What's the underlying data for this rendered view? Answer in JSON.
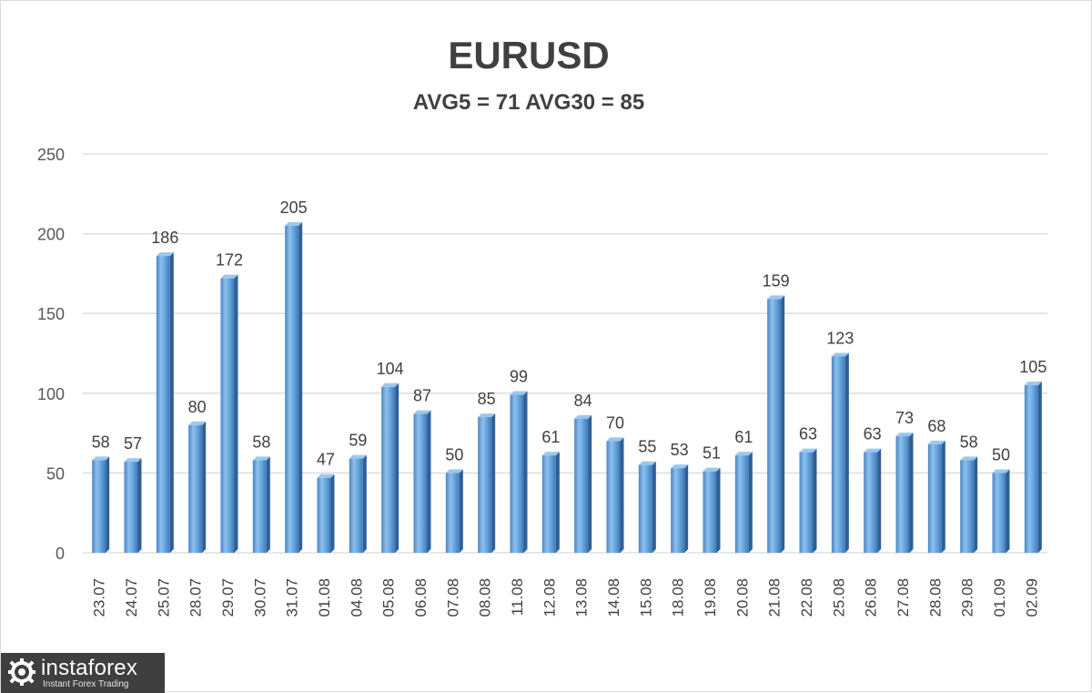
{
  "chart_data": {
    "type": "bar",
    "title": "EURUSD",
    "subtitle": "AVG5 = 71 AVG30 = 85",
    "categories": [
      "23.07",
      "24.07",
      "25.07",
      "28.07",
      "29.07",
      "30.07",
      "31.07",
      "01.08",
      "04.08",
      "05.08",
      "06.08",
      "07.08",
      "08.08",
      "11.08",
      "12.08",
      "13.08",
      "14.08",
      "15.08",
      "18.08",
      "19.08",
      "20.08",
      "21.08",
      "22.08",
      "25.08",
      "26.08",
      "27.08",
      "28.08",
      "29.08",
      "01.09",
      "02.09"
    ],
    "values": [
      58,
      57,
      186,
      80,
      172,
      58,
      205,
      47,
      59,
      104,
      87,
      50,
      85,
      99,
      61,
      84,
      70,
      55,
      53,
      51,
      61,
      159,
      63,
      123,
      63,
      73,
      68,
      58,
      50,
      105
    ],
    "ylim": [
      0,
      250
    ],
    "yticks": [
      0,
      50,
      100,
      150,
      200,
      250
    ],
    "grid": true,
    "data_labels": true,
    "bar_color": "#5b9bd5"
  },
  "watermark": {
    "name": "instaforex",
    "tagline": "Instant Forex Trading"
  }
}
